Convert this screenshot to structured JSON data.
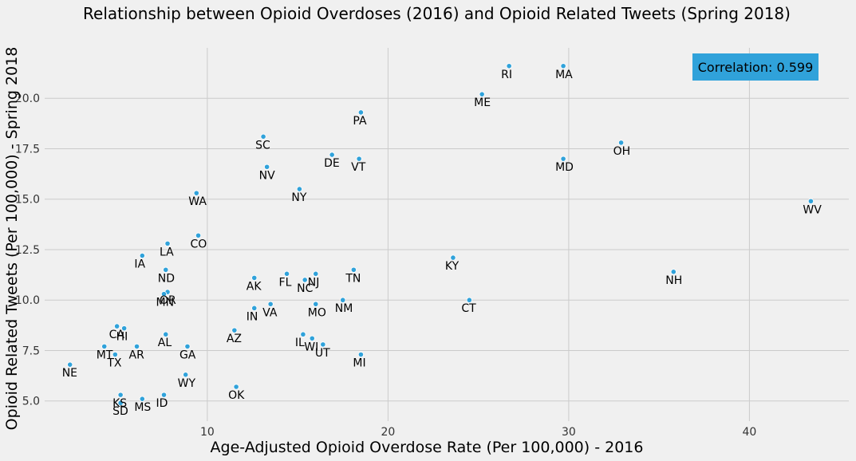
{
  "chart_data": {
    "type": "scatter",
    "title": "Relationship between Opioid Overdoses (2016) and Opioid Related Tweets (Spring 2018)",
    "xlabel": "Age-Adjusted Opioid Overdose Rate (Per 100,000) - 2016",
    "ylabel": "Opioid Related Tweets (Per 100,000) - Spring 2018",
    "xlim": [
      1.0,
      45.5
    ],
    "ylim": [
      4.0,
      22.5
    ],
    "xticks": [
      10,
      20,
      30,
      40
    ],
    "yticks": [
      5.0,
      7.5,
      10.0,
      12.5,
      15.0,
      17.5,
      20.0
    ],
    "grid": true,
    "point_color": "#30a2da",
    "annotation": "Correlation: 0.599",
    "annotation_color": "#30a2da",
    "points": [
      {
        "label": "RI",
        "x": 26.7,
        "y": 21.6
      },
      {
        "label": "MA",
        "x": 29.7,
        "y": 21.6
      },
      {
        "label": "ME",
        "x": 25.2,
        "y": 20.2
      },
      {
        "label": "PA",
        "x": 18.5,
        "y": 19.3
      },
      {
        "label": "SC",
        "x": 13.1,
        "y": 18.1
      },
      {
        "label": "OH",
        "x": 32.9,
        "y": 17.8
      },
      {
        "label": "DE",
        "x": 16.9,
        "y": 17.2
      },
      {
        "label": "VT",
        "x": 18.4,
        "y": 17.0
      },
      {
        "label": "MD",
        "x": 29.7,
        "y": 17.0
      },
      {
        "label": "NV",
        "x": 13.3,
        "y": 16.6
      },
      {
        "label": "NY",
        "x": 15.1,
        "y": 15.5
      },
      {
        "label": "WA",
        "x": 9.4,
        "y": 15.3
      },
      {
        "label": "WV",
        "x": 43.4,
        "y": 14.9
      },
      {
        "label": "CO",
        "x": 9.5,
        "y": 13.2
      },
      {
        "label": "LA",
        "x": 7.8,
        "y": 12.8
      },
      {
        "label": "IA",
        "x": 6.4,
        "y": 12.2
      },
      {
        "label": "KY",
        "x": 23.6,
        "y": 12.1
      },
      {
        "label": "ND",
        "x": 7.7,
        "y": 11.5
      },
      {
        "label": "TN",
        "x": 18.1,
        "y": 11.5
      },
      {
        "label": "NH",
        "x": 35.8,
        "y": 11.4
      },
      {
        "label": "FL",
        "x": 14.4,
        "y": 11.3
      },
      {
        "label": "NJ",
        "x": 16.0,
        "y": 11.3
      },
      {
        "label": "AK",
        "x": 12.6,
        "y": 11.1
      },
      {
        "label": "NC",
        "x": 15.4,
        "y": 11.0
      },
      {
        "label": "OR",
        "x": 7.8,
        "y": 10.4
      },
      {
        "label": "MN",
        "x": 7.6,
        "y": 10.3
      },
      {
        "label": "CT",
        "x": 24.5,
        "y": 10.0
      },
      {
        "label": "NM",
        "x": 17.5,
        "y": 10.0
      },
      {
        "label": "MO",
        "x": 16.0,
        "y": 9.8
      },
      {
        "label": "VA",
        "x": 13.5,
        "y": 9.8
      },
      {
        "label": "IN",
        "x": 12.6,
        "y": 9.6
      },
      {
        "label": "CA",
        "x": 5.0,
        "y": 8.7
      },
      {
        "label": "HI",
        "x": 5.4,
        "y": 8.6
      },
      {
        "label": "AZ",
        "x": 11.5,
        "y": 8.5
      },
      {
        "label": "IL",
        "x": 15.3,
        "y": 8.3
      },
      {
        "label": "AL",
        "x": 7.7,
        "y": 8.3
      },
      {
        "label": "WI",
        "x": 15.8,
        "y": 8.1
      },
      {
        "label": "UT",
        "x": 16.4,
        "y": 7.8
      },
      {
        "label": "AR",
        "x": 6.1,
        "y": 7.7
      },
      {
        "label": "MT",
        "x": 4.3,
        "y": 7.7
      },
      {
        "label": "GA",
        "x": 8.9,
        "y": 7.7
      },
      {
        "label": "TX",
        "x": 4.9,
        "y": 7.3
      },
      {
        "label": "MI",
        "x": 18.5,
        "y": 7.3
      },
      {
        "label": "NE",
        "x": 2.4,
        "y": 6.8
      },
      {
        "label": "WY",
        "x": 8.8,
        "y": 6.3
      },
      {
        "label": "OK",
        "x": 11.6,
        "y": 5.7
      },
      {
        "label": "KS",
        "x": 5.2,
        "y": 5.3
      },
      {
        "label": "ID",
        "x": 7.6,
        "y": 5.3
      },
      {
        "label": "MS",
        "x": 6.4,
        "y": 5.1
      },
      {
        "label": "SD",
        "x": 5.2,
        "y": 4.9
      }
    ]
  }
}
